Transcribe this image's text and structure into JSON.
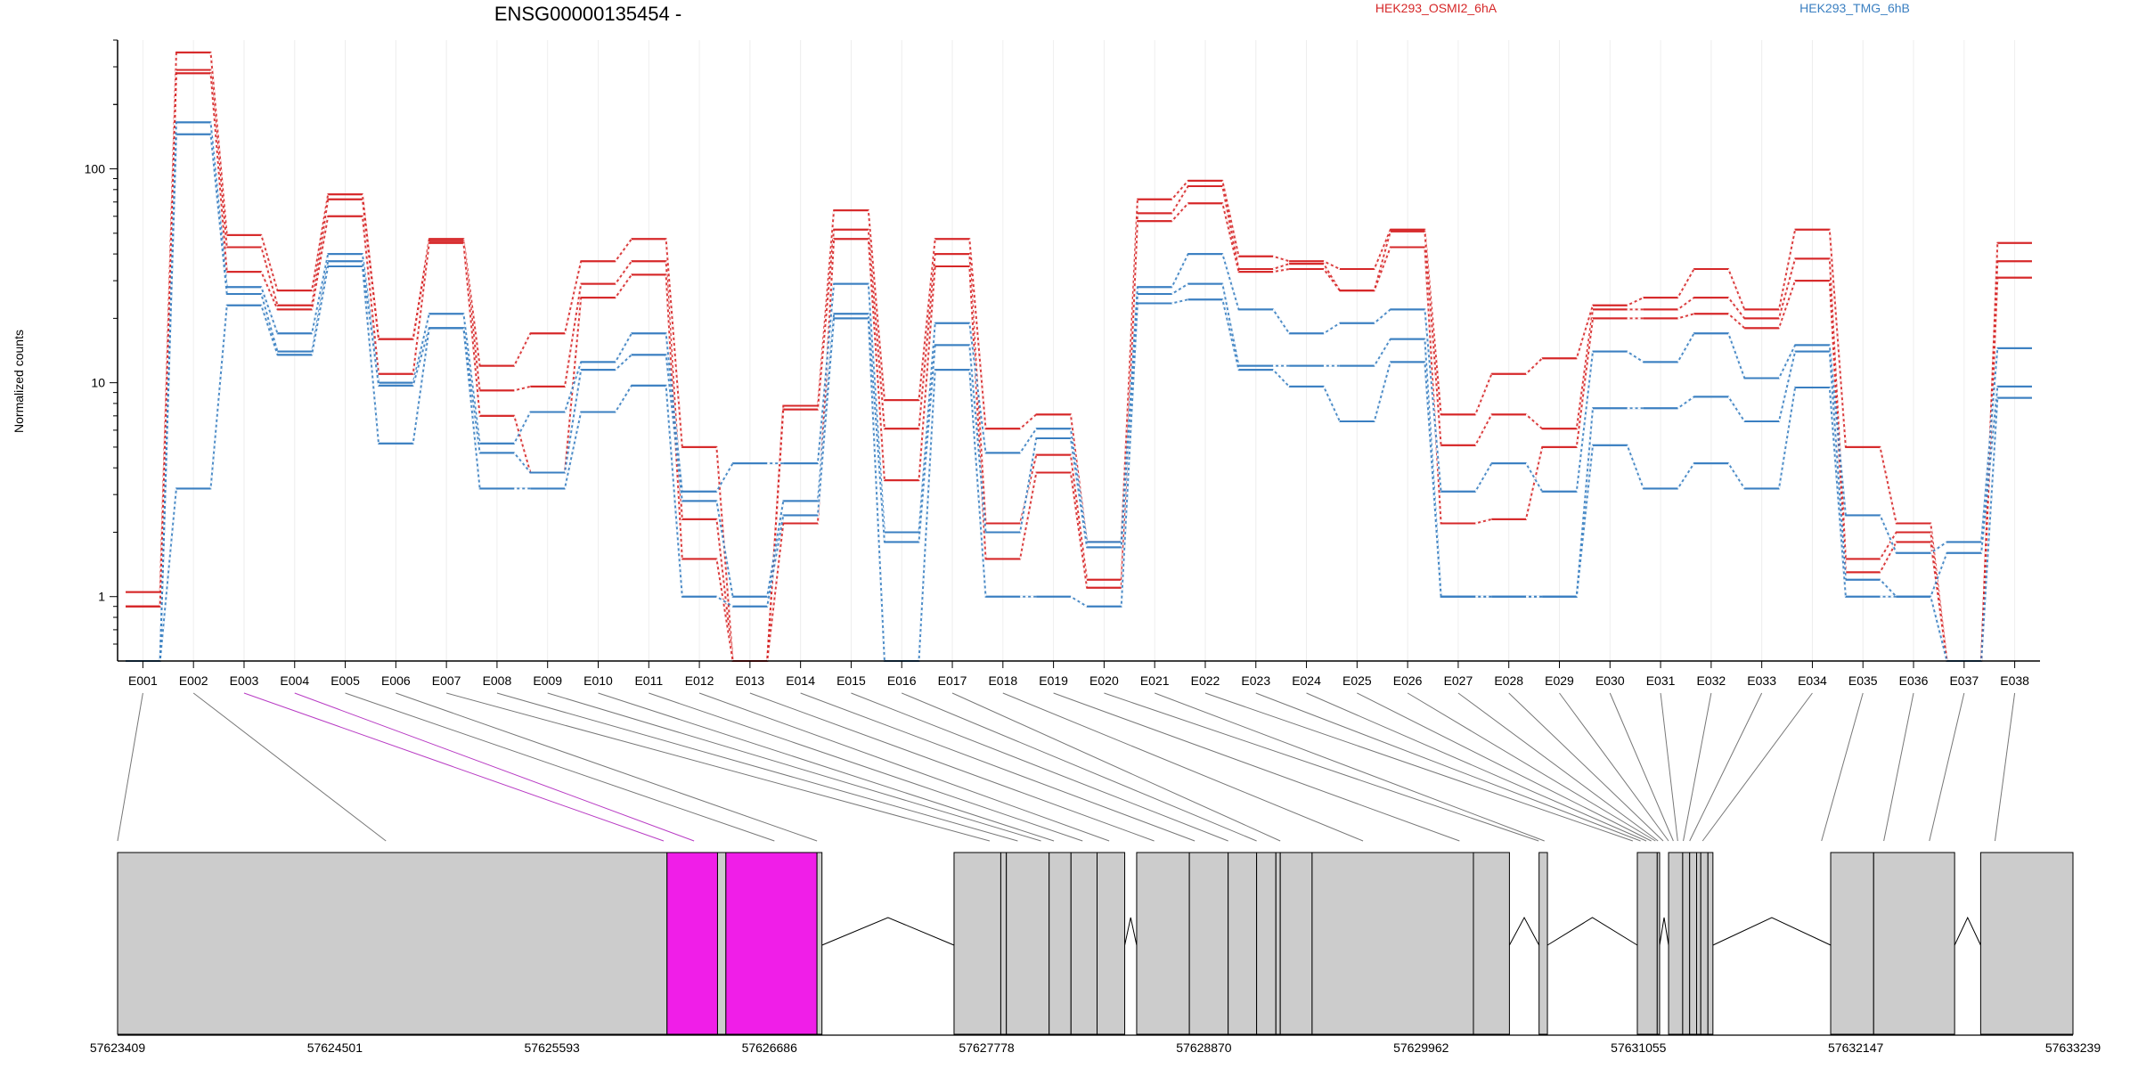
{
  "chart_data": {
    "type": "line",
    "title": "ENSG00000135454 -",
    "ylabel": "Normalized counts",
    "yscale": "log",
    "ylim": [
      0.5,
      400
    ],
    "yticks": [
      {
        "value": 1,
        "label": "1"
      },
      {
        "value": 10,
        "label": "10"
      },
      {
        "value": 100,
        "label": "100"
      }
    ],
    "categories": [
      "E001",
      "E002",
      "E003",
      "E004",
      "E005",
      "E006",
      "E007",
      "E008",
      "E009",
      "E010",
      "E011",
      "E012",
      "E013",
      "E014",
      "E015",
      "E016",
      "E017",
      "E018",
      "E019",
      "E020",
      "E021",
      "E022",
      "E023",
      "E024",
      "E025",
      "E026",
      "E027",
      "E028",
      "E029",
      "E030",
      "E031",
      "E032",
      "E033",
      "E034",
      "E035",
      "E036",
      "E037",
      "E038"
    ],
    "legend": [
      {
        "label": "HEK293_OSMI2_6hA",
        "color": "#d62728"
      },
      {
        "label": "HEK293_TMG_6hB",
        "color": "#3a7fc1"
      }
    ],
    "series": [
      {
        "group": 0,
        "color": "#d62728",
        "values": [
          1.05,
          350,
          49,
          27,
          76,
          16,
          47,
          12,
          17,
          37,
          47,
          5,
          0.5,
          7.8,
          64,
          8.3,
          47,
          6.1,
          7.1,
          1.8,
          72,
          88,
          39,
          37,
          34,
          52,
          7.1,
          11,
          13,
          23,
          25,
          34,
          22,
          52,
          5,
          2.2,
          0.5,
          45
        ]
      },
      {
        "group": 0,
        "color": "#d62728",
        "values": [
          0.9,
          290,
          43,
          23,
          72,
          16,
          46,
          9.2,
          9.6,
          29,
          37,
          2.3,
          0.5,
          7.5,
          52,
          6.1,
          40,
          2.2,
          4.6,
          1.2,
          62,
          83,
          34,
          36,
          27,
          51,
          5.1,
          7.1,
          6.1,
          22,
          22,
          25,
          20,
          38,
          1.5,
          2,
          0.5,
          37
        ]
      },
      {
        "group": 0,
        "color": "#d62728",
        "values": [
          0.9,
          280,
          33,
          22,
          60,
          11,
          45,
          7,
          3.8,
          25,
          32,
          1.5,
          0.5,
          2.2,
          47,
          3.5,
          35,
          1.5,
          3.8,
          1.1,
          57,
          69,
          33,
          34,
          27,
          43,
          2.2,
          2.3,
          5,
          20,
          20,
          21,
          18,
          30,
          1.3,
          1.8,
          0.5,
          31
        ]
      },
      {
        "group": 1,
        "color": "#3a7fc1",
        "values": [
          0.5,
          165,
          28,
          17,
          40,
          10,
          21,
          5.2,
          7.3,
          12.5,
          17,
          3.1,
          4.2,
          4.2,
          29,
          2,
          19,
          4.7,
          6.1,
          1.8,
          28,
          40,
          22,
          17,
          19,
          22,
          3.1,
          4.2,
          3.1,
          14,
          12.5,
          17,
          10.5,
          15,
          2.4,
          1.6,
          1.8,
          14.5
        ]
      },
      {
        "group": 1,
        "color": "#3a7fc1",
        "values": [
          0.5,
          145,
          26,
          14,
          37,
          9.7,
          18,
          4.7,
          3.8,
          11.5,
          13.5,
          2.8,
          1,
          2.8,
          21,
          1.8,
          15,
          2,
          5.5,
          1.7,
          26,
          29,
          12,
          12,
          12,
          16,
          1,
          1,
          1,
          7.6,
          7.6,
          8.6,
          6.6,
          14,
          1.2,
          1,
          1.6,
          9.6
        ]
      },
      {
        "group": 1,
        "color": "#3a7fc1",
        "values": [
          0.5,
          3.2,
          23,
          13.5,
          35,
          5.2,
          18,
          3.2,
          3.2,
          7.3,
          9.7,
          1,
          0.9,
          2.4,
          20,
          0.5,
          11.5,
          1,
          1,
          0.9,
          23.5,
          24.5,
          11.5,
          9.6,
          6.6,
          12.5,
          1,
          1,
          1,
          5.1,
          3.2,
          4.2,
          3.2,
          9.5,
          1,
          1,
          0.5,
          8.5
        ]
      }
    ],
    "gene_model": {
      "coordinates": [
        "57623409",
        "57624501",
        "57625593",
        "57626686",
        "57627778",
        "57628870",
        "57629962",
        "57631055",
        "57632147",
        "57633239"
      ],
      "genomic_range": [
        57623409,
        57633239
      ],
      "highlight_color": "#f01ee8",
      "exon_fill": "#cccccc",
      "exons": [
        {
          "start": 57623409,
          "end": 57626171,
          "highlight": false
        },
        {
          "start": 57626171,
          "end": 57626425,
          "highlight": true
        },
        {
          "start": 57626425,
          "end": 57626467,
          "highlight": false
        },
        {
          "start": 57626467,
          "end": 57626925,
          "highlight": true
        },
        {
          "start": 57626925,
          "end": 57626950,
          "highlight": false
        },
        {
          "start": 57627614,
          "end": 57627849,
          "highlight": false
        },
        {
          "start": 57627849,
          "end": 57627877,
          "highlight": false
        },
        {
          "start": 57627877,
          "end": 57628092,
          "highlight": false
        },
        {
          "start": 57628092,
          "end": 57628202,
          "highlight": false
        },
        {
          "start": 57628202,
          "end": 57628333,
          "highlight": false
        },
        {
          "start": 57628333,
          "end": 57628472,
          "highlight": false
        },
        {
          "start": 57628532,
          "end": 57628797,
          "highlight": false
        },
        {
          "start": 57628797,
          "end": 57628992,
          "highlight": false
        },
        {
          "start": 57628992,
          "end": 57629135,
          "highlight": false
        },
        {
          "start": 57629135,
          "end": 57629232,
          "highlight": false
        },
        {
          "start": 57629232,
          "end": 57629254,
          "highlight": false
        },
        {
          "start": 57629254,
          "end": 57629414,
          "highlight": false
        },
        {
          "start": 57629414,
          "end": 57630225,
          "highlight": false
        },
        {
          "start": 57630225,
          "end": 57630406,
          "highlight": false
        },
        {
          "start": 57630555,
          "end": 57630597,
          "highlight": false
        },
        {
          "start": 57631049,
          "end": 57631149,
          "highlight": false
        },
        {
          "start": 57631149,
          "end": 57631161,
          "highlight": false
        },
        {
          "start": 57631206,
          "end": 57631277,
          "highlight": false
        },
        {
          "start": 57631277,
          "end": 57631312,
          "highlight": false
        },
        {
          "start": 57631312,
          "end": 57631347,
          "highlight": false
        },
        {
          "start": 57631347,
          "end": 57631368,
          "highlight": false
        },
        {
          "start": 57631368,
          "end": 57631404,
          "highlight": false
        },
        {
          "start": 57631404,
          "end": 57631429,
          "highlight": false
        },
        {
          "start": 57632021,
          "end": 57632237,
          "highlight": false
        },
        {
          "start": 57632237,
          "end": 57632644,
          "highlight": false
        },
        {
          "start": 57632775,
          "end": 57633239,
          "highlight": false
        }
      ],
      "exon_positions": [
        57623409,
        57624758,
        57626154,
        57626307,
        57626711,
        57626925,
        57627793,
        57627934,
        57628051,
        57628116,
        57628260,
        57628394,
        57628620,
        57628824,
        57628992,
        57629135,
        57629254,
        57629670,
        57630155,
        57630553,
        57630582,
        57631026,
        57631065,
        57631094,
        57631119,
        57631140,
        57631153,
        57631179,
        57631206,
        57631230,
        57631252,
        57631280,
        57631312,
        57631377,
        57631975,
        57632288,
        57632517,
        57632847
      ],
      "highlighted_connectors": [
        2,
        3
      ]
    }
  }
}
